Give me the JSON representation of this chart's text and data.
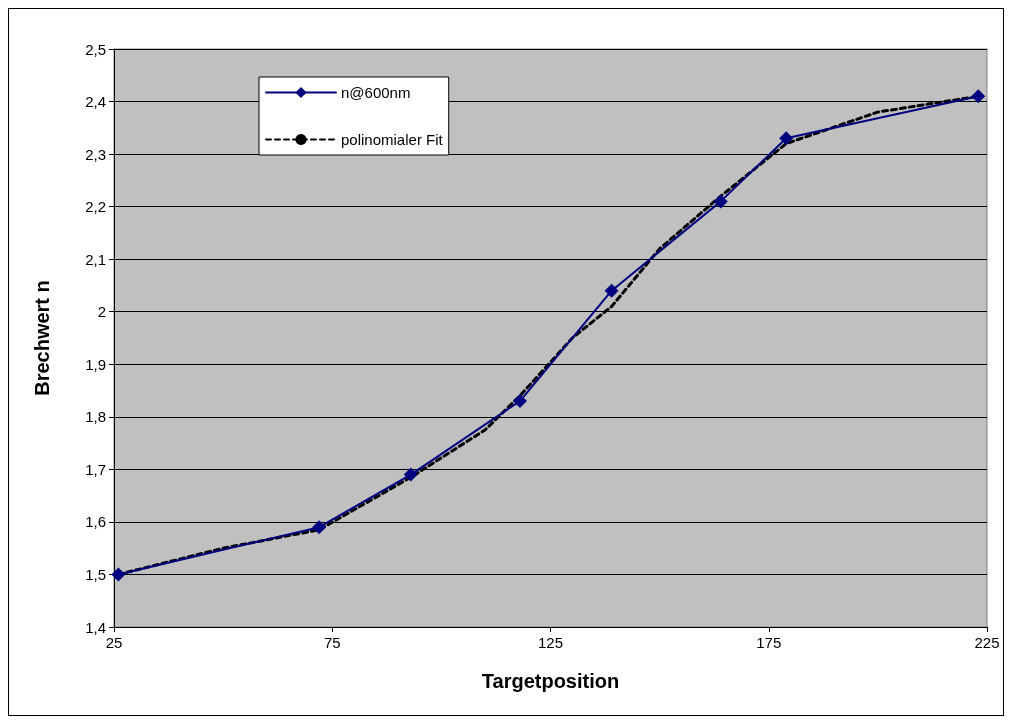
{
  "chart_data": {
    "type": "line",
    "xlabel": "Targetposition",
    "ylabel": "Brechwert n",
    "xlim": [
      25,
      225
    ],
    "xticks": [
      25,
      75,
      125,
      175,
      225
    ],
    "ylim": [
      1.4,
      2.5
    ],
    "yticks": [
      {
        "value": 1.4,
        "label": "1,4"
      },
      {
        "value": 1.5,
        "label": "1,5"
      },
      {
        "value": 1.6,
        "label": "1,6"
      },
      {
        "value": 1.7,
        "label": "1,7"
      },
      {
        "value": 1.8,
        "label": "1,8"
      },
      {
        "value": 1.9,
        "label": "1,9"
      },
      {
        "value": 2,
        "label": "2"
      },
      {
        "value": 2.1,
        "label": "2,1"
      },
      {
        "value": 2.2,
        "label": "2,2"
      },
      {
        "value": 2.3,
        "label": "2,3"
      },
      {
        "value": 2.4,
        "label": "2,4"
      },
      {
        "value": 2.5,
        "label": "2,5"
      }
    ],
    "grid": "y",
    "legend": "top left",
    "series": [
      {
        "name": "n@600nm",
        "color": "#000080",
        "marker": "diamond",
        "line_style": "solid",
        "x": [
          26,
          72,
          93,
          118,
          139,
          164,
          179,
          223
        ],
        "values": [
          1.5,
          1.59,
          1.69,
          1.83,
          2.04,
          2.21,
          2.33,
          2.41
        ]
      },
      {
        "name": "polinomialer Fit",
        "type": "line",
        "color": "#000000",
        "marker": "none",
        "line_style": "dashed",
        "x": [
          26,
          50,
          72,
          93,
          110,
          118,
          130,
          139,
          150,
          164,
          179,
          200,
          223
        ],
        "values": [
          1.5,
          1.55,
          1.585,
          1.685,
          1.775,
          1.84,
          1.95,
          2.01,
          2.12,
          2.22,
          2.32,
          2.38,
          2.41
        ]
      }
    ]
  }
}
